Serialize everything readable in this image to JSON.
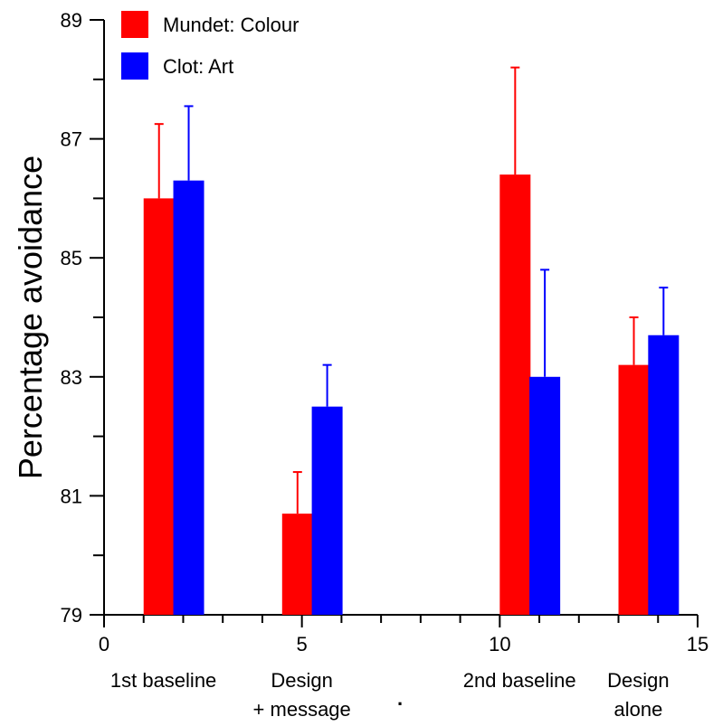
{
  "chart_data": {
    "type": "bar",
    "title": "",
    "xlabel": "",
    "ylabel": "Percentage avoidance",
    "xlim": [
      0,
      15
    ],
    "ylim": [
      79,
      89
    ],
    "x_ticks": [
      "0",
      "5",
      "10",
      "15"
    ],
    "y_ticks": [
      "79",
      "81",
      "83",
      "85",
      "87",
      "89"
    ],
    "categories": [
      {
        "lines": [
          "1st baseline"
        ],
        "x": 1.5
      },
      {
        "lines": [
          "Design",
          "+ message"
        ],
        "x": 5.0
      },
      {
        "lines": [
          "2nd baseline"
        ],
        "x": 10.5
      },
      {
        "lines": [
          "Design",
          "alone"
        ],
        "x": 13.5
      }
    ],
    "series": [
      {
        "name": "Mundet: Colour",
        "color": "#ff0000",
        "points": [
          {
            "x": 1.0,
            "value": 86.0,
            "error": 1.25
          },
          {
            "x": 4.5,
            "value": 80.7,
            "error": 0.7
          },
          {
            "x": 10.0,
            "value": 86.4,
            "error": 1.8
          },
          {
            "x": 13.0,
            "value": 83.2,
            "error": 0.8
          }
        ]
      },
      {
        "name": "Clot: Art",
        "color": "#0000ff",
        "points": [
          {
            "x": 1.75,
            "value": 86.3,
            "error": 1.25
          },
          {
            "x": 5.25,
            "value": 82.5,
            "error": 0.7
          },
          {
            "x": 10.75,
            "value": 83.0,
            "error": 1.8
          },
          {
            "x": 13.75,
            "value": 83.7,
            "error": 0.8
          }
        ]
      }
    ],
    "legend": {
      "placement": "top-left"
    },
    "grid": false,
    "annotations": [
      "."
    ]
  }
}
